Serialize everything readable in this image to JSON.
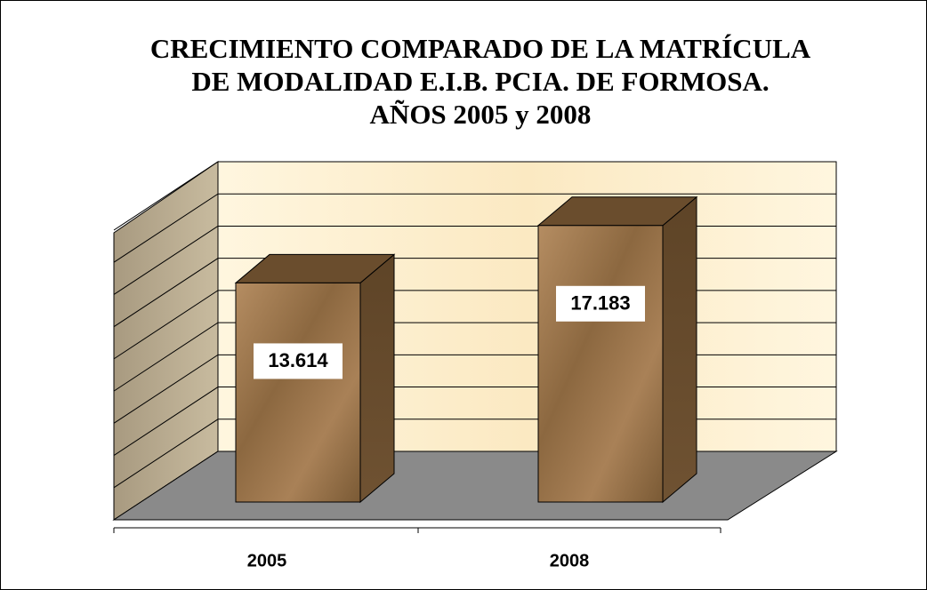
{
  "chart_data": {
    "type": "bar",
    "title": [
      "CRECIMIENTO COMPARADO DE LA MATRÍCULA",
      "DE MODALIDAD E.I.B. PCIA. DE FORMOSA.",
      "AÑOS 2005 y 2008"
    ],
    "categories": [
      "2005",
      "2008"
    ],
    "values": [
      13614,
      17183
    ],
    "value_labels": [
      "13.614",
      "17.183"
    ],
    "color": "#9c7650",
    "ylim": [
      0,
      18000
    ],
    "yticks": [
      0,
      2000,
      4000,
      6000,
      8000,
      10000,
      12000,
      14000,
      16000,
      18000
    ],
    "grid": true
  }
}
